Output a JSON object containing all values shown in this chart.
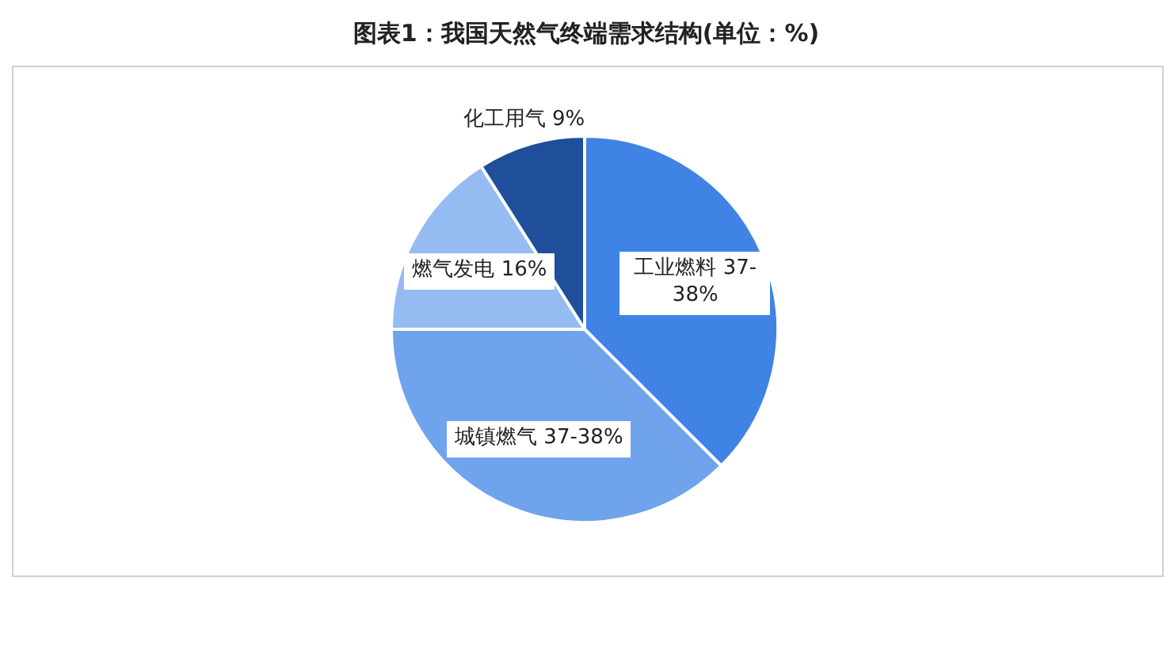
{
  "chart_data": {
    "type": "pie",
    "title": "图表1：我国天然气终端需求结构(单位：%)",
    "categories": [
      "工业燃料",
      "城镇燃气",
      "燃气发电",
      "化工用气"
    ],
    "values": [
      37.5,
      37.5,
      16,
      9
    ],
    "value_labels": [
      "37-38%",
      "37-38%",
      "16%",
      "9%"
    ],
    "colors": [
      "#3f84e5",
      "#6fa3ec",
      "#94bbf2",
      "#1f4e9a"
    ]
  }
}
